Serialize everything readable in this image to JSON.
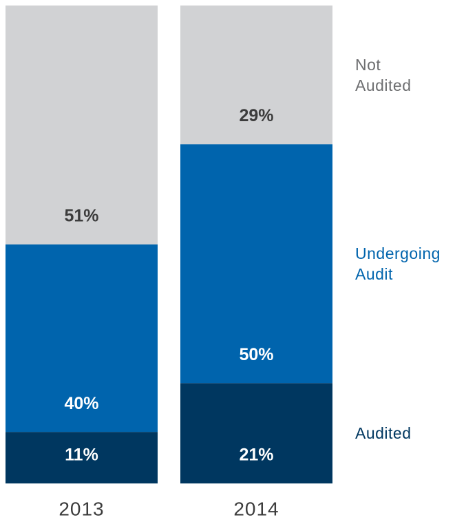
{
  "chart_data": {
    "type": "stacked_bar",
    "categories": [
      "2013",
      "2014"
    ],
    "series": [
      {
        "name": "Audited",
        "color": "#003760",
        "label_color": "#ffffff",
        "values": [
          11,
          21
        ],
        "value_labels": [
          "11%",
          "21%"
        ]
      },
      {
        "name": "Undergoing Audit",
        "color": "#0064ad",
        "label_color": "#ffffff",
        "values": [
          40,
          50
        ],
        "value_labels": [
          "40%",
          "50%"
        ]
      },
      {
        "name": "Not Audited",
        "color": "#d1d2d4",
        "label_color": "#3c3c3c",
        "legend_color": "#6d6e70",
        "values": [
          51,
          29
        ],
        "value_labels": [
          "51%",
          "29%"
        ]
      }
    ]
  }
}
